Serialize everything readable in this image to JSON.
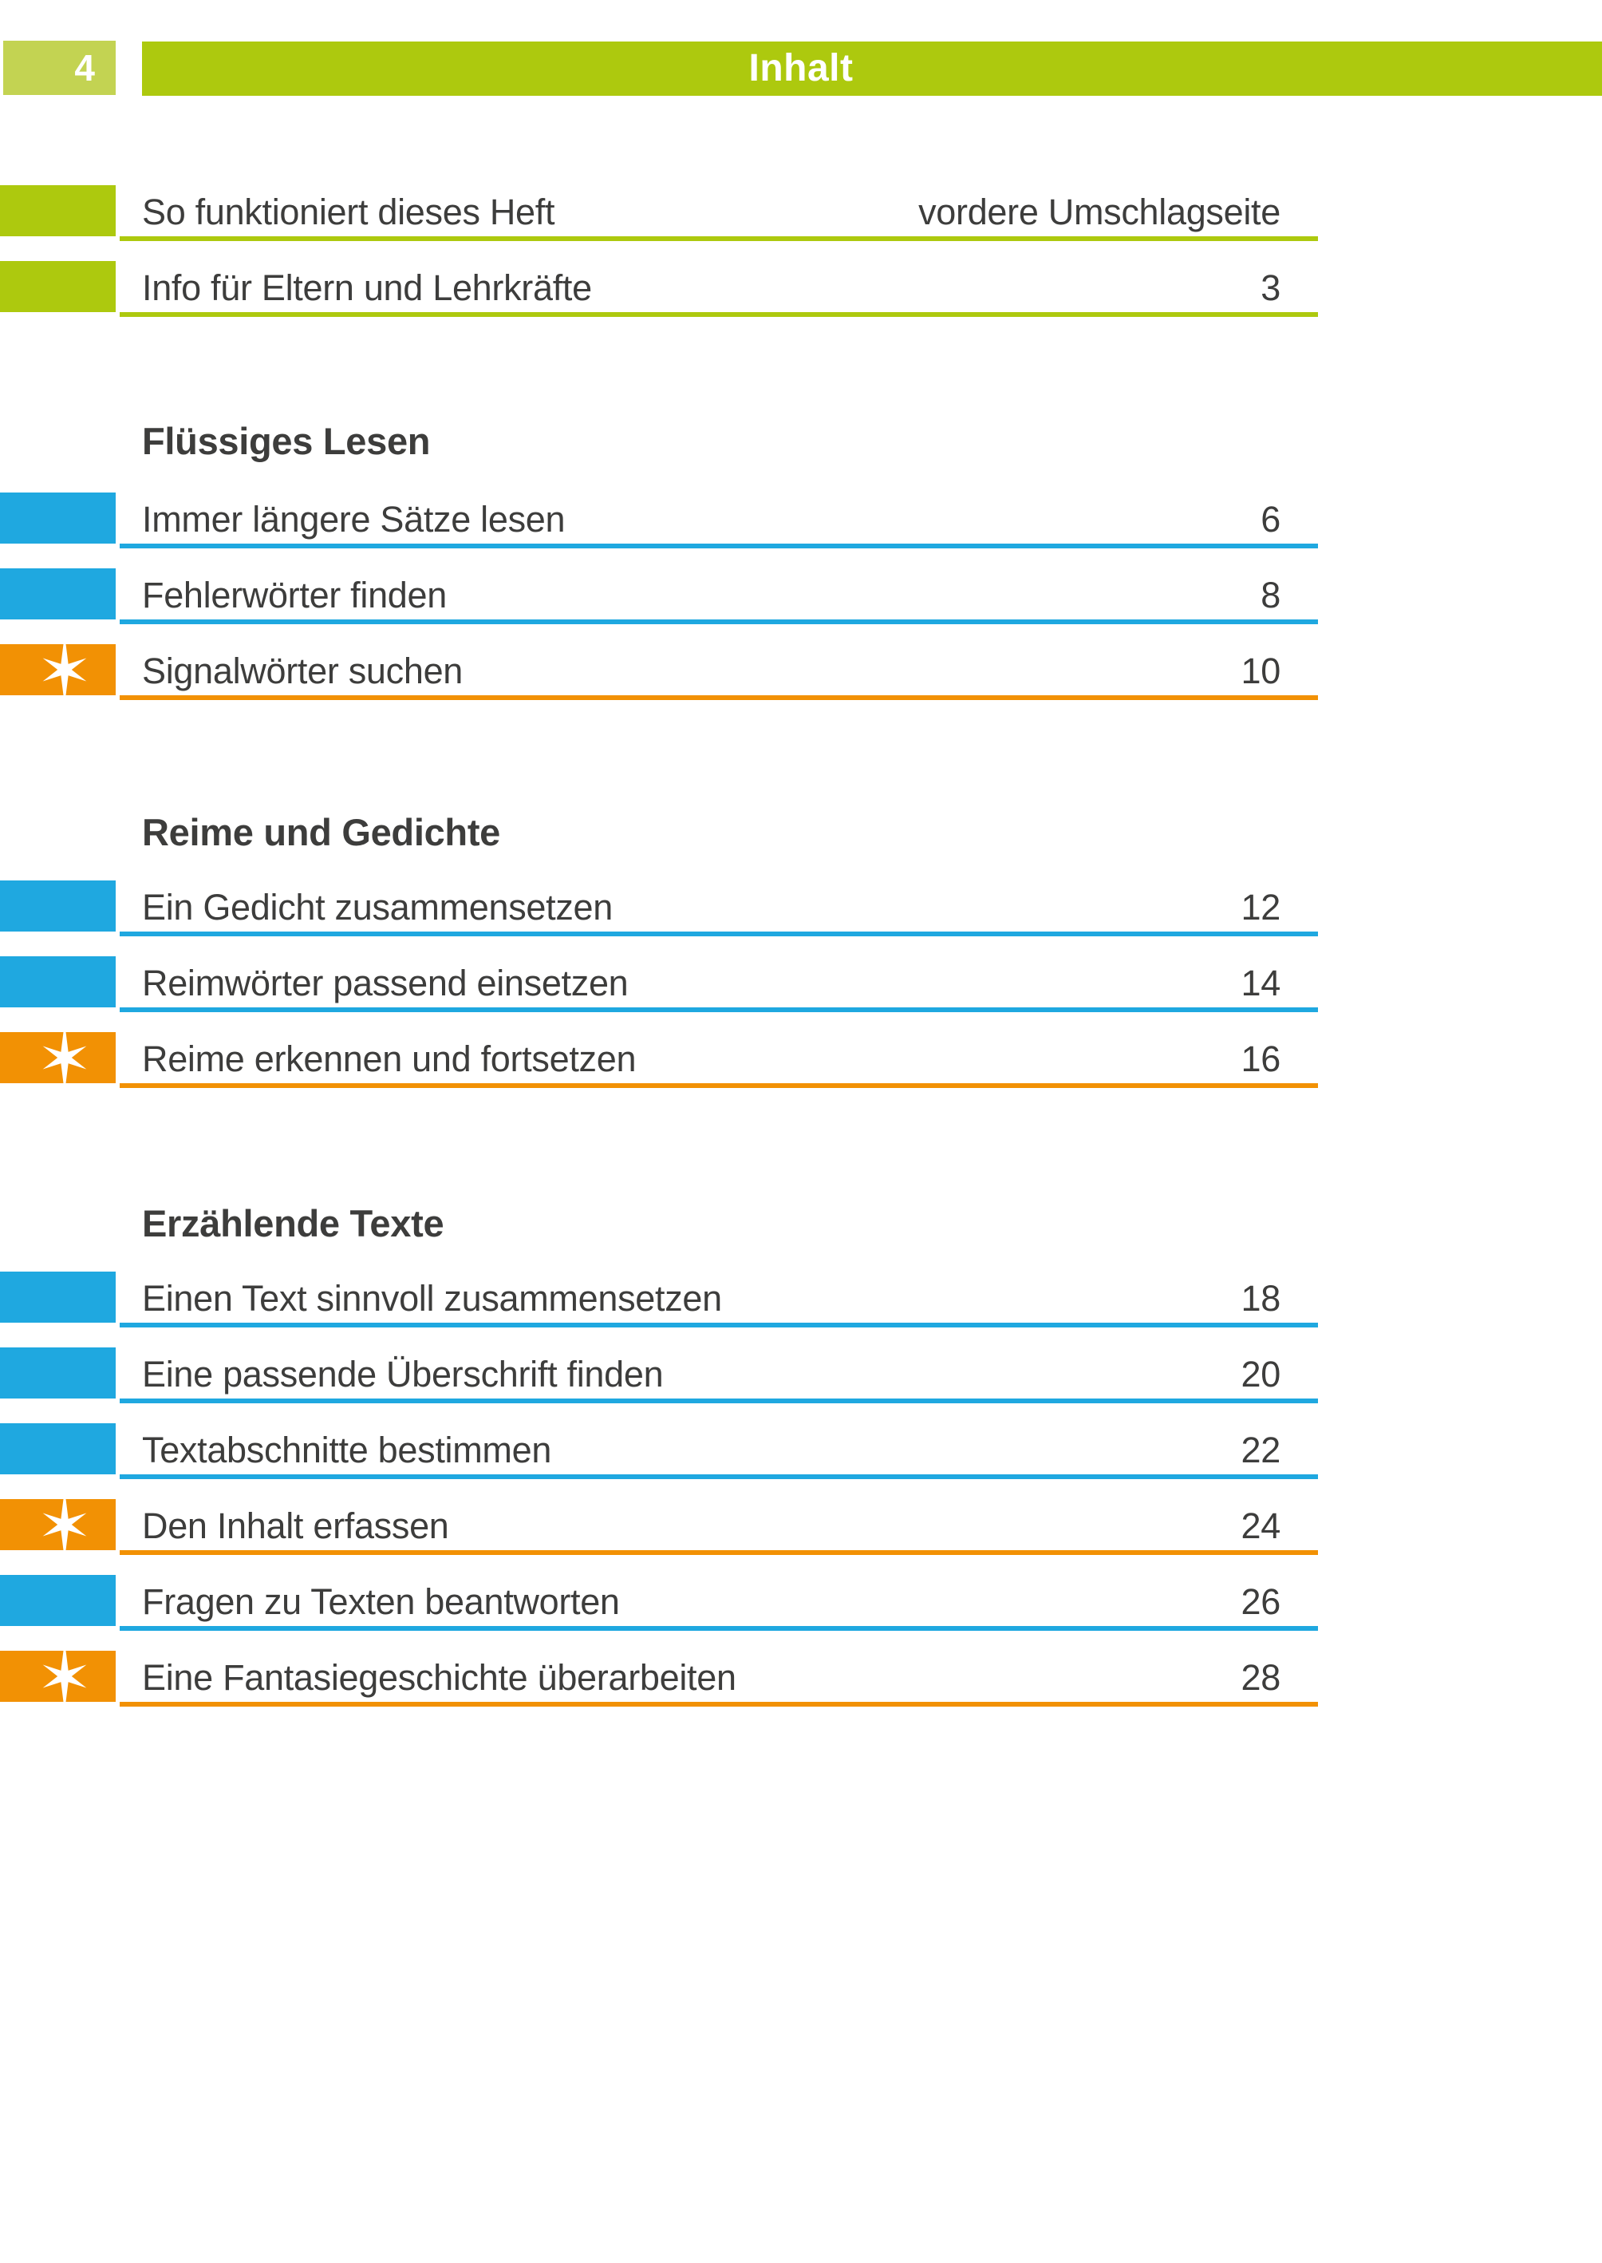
{
  "page": {
    "number": "4",
    "header_title": "Inhalt"
  },
  "colors": {
    "green": "#adc90e",
    "green_light": "#c3d352",
    "blue": "#1fa8e0",
    "orange": "#f29104",
    "text": "#3d3d3c"
  },
  "icons": {
    "star": "six-pointed-white-sparkle"
  },
  "toc": {
    "intro": [
      {
        "label": "So funktioniert dieses Heft",
        "page": "vordere Umschlagseite",
        "color": "green",
        "star": false
      },
      {
        "label": "Info für Eltern und Lehrkräfte",
        "page": "3",
        "color": "green",
        "star": false
      }
    ],
    "sections": [
      {
        "heading": "Flüssiges Lesen",
        "rows": [
          {
            "label": "Immer längere Sätze lesen",
            "page": "6",
            "color": "blue",
            "star": false
          },
          {
            "label": "Fehlerwörter finden",
            "page": "8",
            "color": "blue",
            "star": false
          },
          {
            "label": "Signalwörter suchen",
            "page": "10",
            "color": "orange",
            "star": true
          }
        ]
      },
      {
        "heading": "Reime und Gedichte",
        "rows": [
          {
            "label": "Ein Gedicht zusammensetzen",
            "page": "12",
            "color": "blue",
            "star": false
          },
          {
            "label": "Reimwörter passend einsetzen",
            "page": "14",
            "color": "blue",
            "star": false
          },
          {
            "label": "Reime erkennen und fortsetzen",
            "page": "16",
            "color": "orange",
            "star": true
          }
        ]
      },
      {
        "heading": "Erzählende Texte",
        "rows": [
          {
            "label": "Einen Text sinnvoll zusammensetzen",
            "page": "18",
            "color": "blue",
            "star": false
          },
          {
            "label": "Eine passende Überschrift finden",
            "page": "20",
            "color": "blue",
            "star": false
          },
          {
            "label": "Textabschnitte bestimmen",
            "page": "22",
            "color": "blue",
            "star": false
          },
          {
            "label": "Den Inhalt erfassen",
            "page": "24",
            "color": "orange",
            "star": true
          },
          {
            "label": "Fragen zu Texten beantworten",
            "page": "26",
            "color": "blue",
            "star": false
          },
          {
            "label": "Eine Fantasiegeschichte überarbeiten",
            "page": "28",
            "color": "orange",
            "star": true
          }
        ]
      }
    ]
  }
}
